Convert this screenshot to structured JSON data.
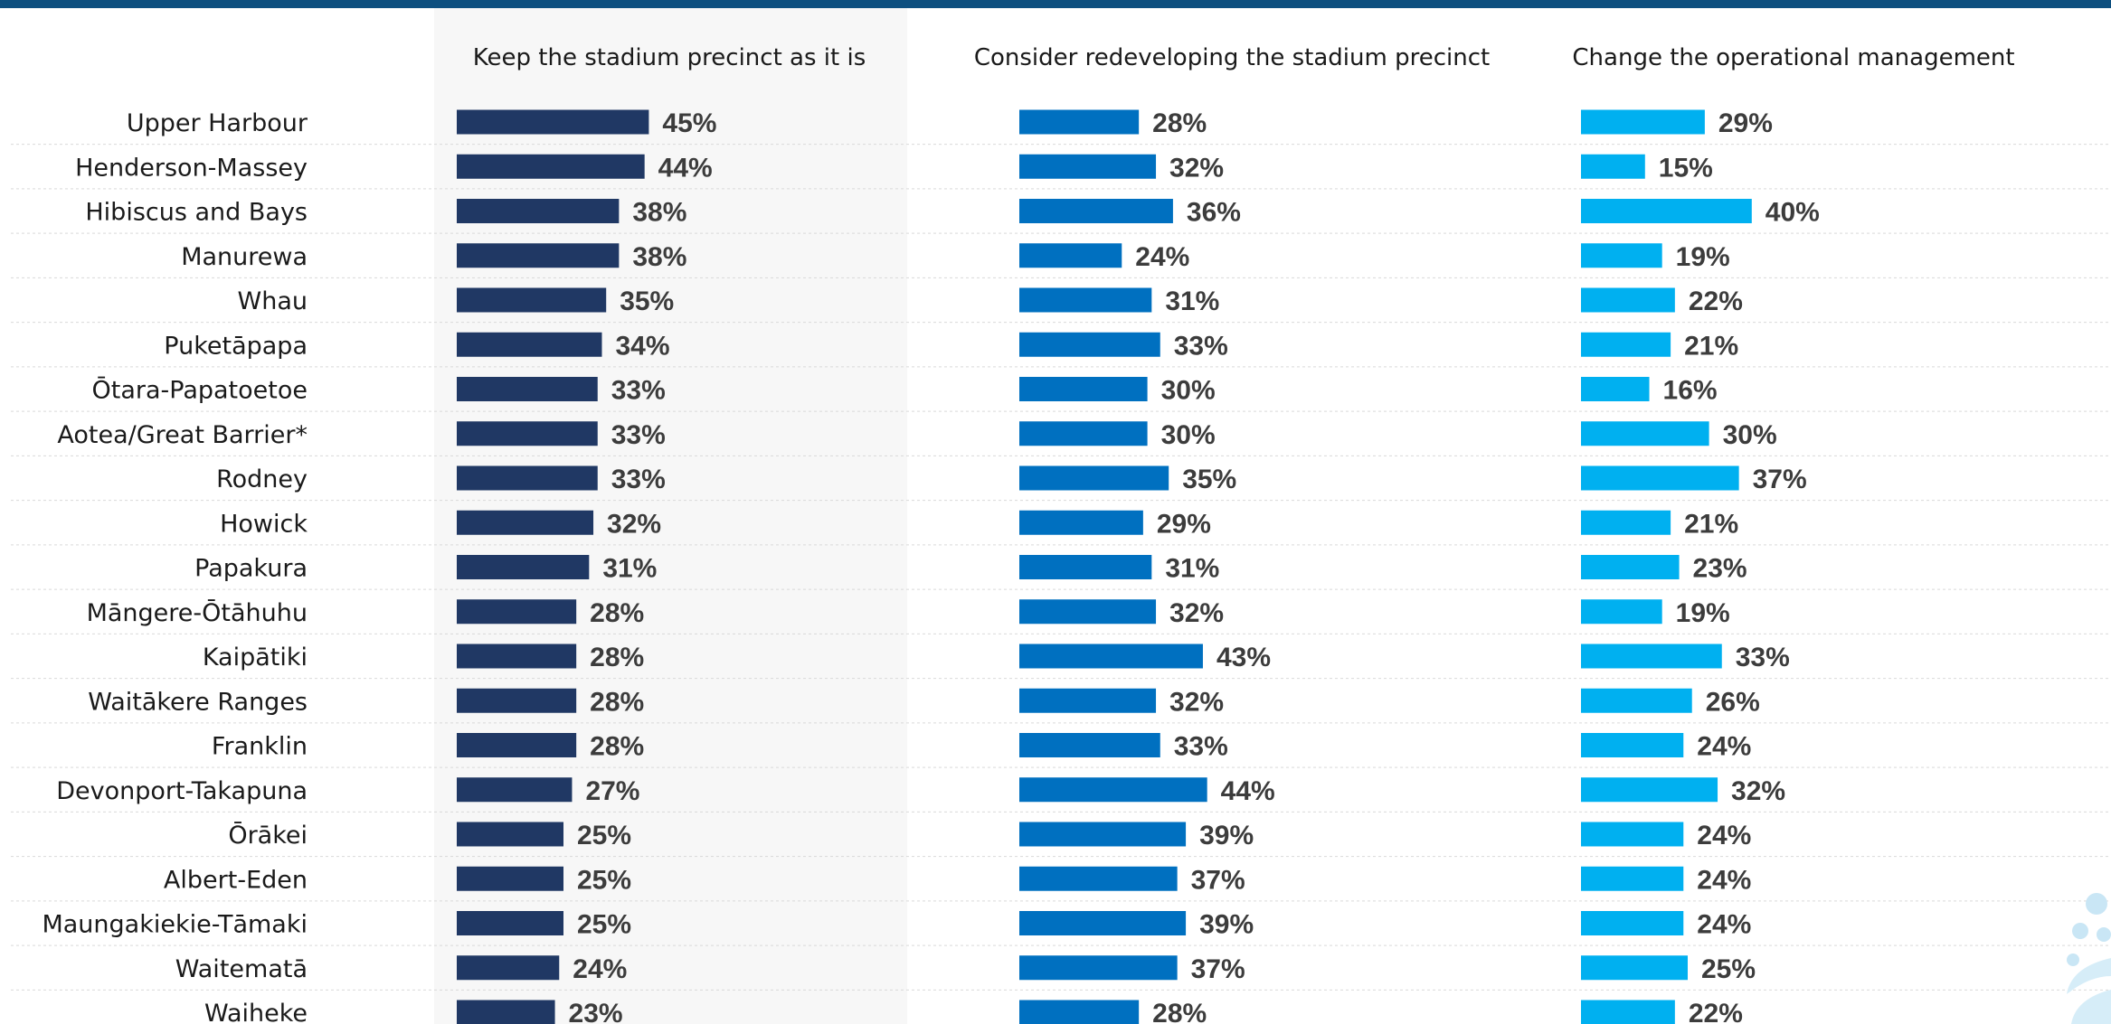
{
  "chart_data": {
    "type": "bar",
    "orientation": "horizontal",
    "value_format": "percent",
    "grid": false,
    "categories": [
      "Upper Harbour",
      "Henderson-Massey",
      "Hibiscus and Bays",
      "Manurewa",
      "Whau",
      "Puketāpapa",
      "Ōtara-Papatoetoe",
      "Aotea/Great Barrier*",
      "Rodney",
      "Howick",
      "Papakura",
      "Māngere-Ōtāhuhu",
      "Kaipātiki",
      "Waitākere Ranges",
      "Franklin",
      "Devonport-Takapuna",
      "Ōrākei",
      "Albert-Eden",
      "Maungakiekie-Tāmaki",
      "Waitematā",
      "Waiheke"
    ],
    "series": [
      {
        "name": "Keep the stadium precinct as it is",
        "color": "#203864",
        "values": [
          45,
          44,
          38,
          38,
          35,
          34,
          33,
          33,
          33,
          32,
          31,
          28,
          28,
          28,
          28,
          27,
          25,
          25,
          25,
          24,
          23
        ]
      },
      {
        "name": "Consider redeveloping the stadium precinct",
        "color": "#0070c0",
        "values": [
          28,
          32,
          36,
          24,
          31,
          33,
          30,
          30,
          35,
          29,
          31,
          32,
          43,
          32,
          33,
          44,
          39,
          37,
          39,
          37,
          28
        ]
      },
      {
        "name": "Change the operational management",
        "color": "#00b0f0",
        "values": [
          29,
          15,
          40,
          19,
          22,
          21,
          16,
          30,
          37,
          21,
          23,
          19,
          33,
          26,
          24,
          32,
          24,
          24,
          24,
          25,
          22
        ]
      }
    ],
    "xlim": [
      0,
      100
    ]
  },
  "colors": {
    "top_rule": "#0d4f7f",
    "highlight_panel": "#f7f7f7",
    "separator": "#d9d9d9",
    "value_label": "#3c3c3c"
  },
  "icons": {
    "corner_decoration": "fern-logo-icon"
  }
}
